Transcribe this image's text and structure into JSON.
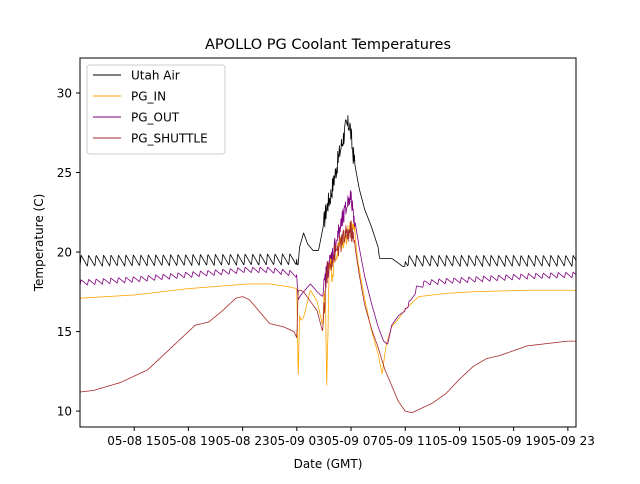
{
  "chart_data": {
    "type": "line",
    "title": "APOLLO PG Coolant Temperatures",
    "xlabel": "Date (GMT)",
    "ylabel": "Temperature (C)",
    "x_unit": "hours since 2023-05-08 00:00 GMT",
    "xlim": [
      11.0,
      47.6
    ],
    "ylim": [
      9.0,
      32.2
    ],
    "grid": false,
    "legend_position": "top-left",
    "x_ticks": [
      {
        "value": 15,
        "label": "05-08 15"
      },
      {
        "value": 19,
        "label": "05-08 19"
      },
      {
        "value": 23,
        "label": "05-08 23"
      },
      {
        "value": 27,
        "label": "05-09 03"
      },
      {
        "value": 31,
        "label": "05-09 07"
      },
      {
        "value": 35,
        "label": "05-09 11"
      },
      {
        "value": 39,
        "label": "05-09 15"
      },
      {
        "value": 43,
        "label": "05-09 19"
      },
      {
        "value": 47,
        "label": "05-09 23"
      }
    ],
    "y_ticks": [
      {
        "value": 10,
        "label": "10"
      },
      {
        "value": 15,
        "label": "15"
      },
      {
        "value": 20,
        "label": "20"
      },
      {
        "value": 25,
        "label": "25"
      },
      {
        "value": 30,
        "label": "30"
      }
    ],
    "series": [
      {
        "name": "Utah Air",
        "color": "#000000",
        "cycle_period_h": 0.55,
        "cycle_amplitude": 0.7,
        "x": [
          11.0,
          27.1,
          27.2,
          27.5,
          27.8,
          28.2,
          28.6,
          28.9,
          29.2,
          29.5,
          29.8,
          30.2,
          30.6,
          30.9,
          31.1,
          31.3,
          31.6,
          32.0,
          32.5,
          33.0,
          33.1,
          33.5,
          34.0,
          34.5,
          34.8,
          35.0,
          47.6
        ],
        "y": [
          19.1,
          19.2,
          20.3,
          21.2,
          20.5,
          20.1,
          20.1,
          21.4,
          22.8,
          23.6,
          24.8,
          26.4,
          27.8,
          28.1,
          26.5,
          25.4,
          24.0,
          22.7,
          21.6,
          20.3,
          19.6,
          19.6,
          19.6,
          19.3,
          19.1,
          19.1,
          19.1
        ]
      },
      {
        "name": "PG_IN",
        "color": "#ffa500",
        "x": [
          11.0,
          15.0,
          19.0,
          22.0,
          23.5,
          25.0,
          26.5,
          27.0,
          27.1,
          27.2,
          27.3,
          27.5,
          28.0,
          28.5,
          28.9,
          29.1,
          29.2,
          29.4,
          29.6,
          29.9,
          30.2,
          30.5,
          30.8,
          31.0,
          31.2,
          31.5,
          32.0,
          32.5,
          33.0,
          33.3,
          33.4,
          33.6,
          34.0,
          34.5,
          35.0,
          36.0,
          38.0,
          40.0,
          44.0,
          47.6
        ],
        "y": [
          17.1,
          17.3,
          17.7,
          17.9,
          18.0,
          18.0,
          17.8,
          17.7,
          11.9,
          16.0,
          15.7,
          15.9,
          17.6,
          16.9,
          15.4,
          18.2,
          11.1,
          19.8,
          18.7,
          19.8,
          20.5,
          20.9,
          21.2,
          21.4,
          21.8,
          19.4,
          17.1,
          15.1,
          13.6,
          12.3,
          13.0,
          14.2,
          15.3,
          15.8,
          16.4,
          17.2,
          17.4,
          17.5,
          17.6,
          17.6
        ]
      },
      {
        "name": "PG_OUT",
        "color": "#800080",
        "cycle_period_h": 0.55,
        "cycle_amplitude": 0.35,
        "x": [
          11.0,
          15.0,
          19.0,
          22.0,
          23.0,
          25.0,
          26.5,
          27.0,
          27.1,
          27.3,
          27.5,
          28.0,
          28.5,
          28.9,
          29.2,
          29.5,
          29.8,
          30.2,
          30.6,
          30.9,
          31.1,
          31.3,
          31.6,
          32.0,
          32.5,
          33.0,
          33.4,
          33.7,
          34.0,
          34.5,
          35.0,
          35.4,
          35.8,
          36.5,
          38.0,
          40.0,
          44.0,
          47.6
        ],
        "y": [
          17.9,
          18.1,
          18.4,
          18.6,
          18.7,
          18.7,
          18.5,
          18.4,
          17.0,
          17.3,
          17.5,
          18.0,
          17.5,
          17.2,
          18.8,
          19.5,
          20.4,
          21.5,
          22.6,
          23.6,
          22.9,
          21.9,
          20.3,
          18.5,
          16.8,
          15.3,
          14.4,
          14.2,
          15.4,
          16.0,
          16.3,
          16.7,
          17.5,
          17.9,
          18.0,
          18.1,
          18.3,
          18.4
        ]
      },
      {
        "name": "PG_SHUTTLE",
        "color": "#a52a2a",
        "x": [
          11.0,
          12.0,
          14.0,
          16.0,
          18.0,
          19.5,
          20.5,
          21.5,
          22.5,
          23.0,
          23.5,
          24.0,
          25.0,
          26.0,
          26.8,
          27.0,
          27.1,
          27.3,
          27.5,
          28.0,
          28.5,
          28.9,
          29.2,
          29.6,
          30.0,
          30.4,
          30.8,
          31.0,
          31.3,
          31.6,
          32.0,
          32.5,
          33.0,
          33.5,
          34.0,
          34.5,
          35.0,
          35.5,
          36.0,
          37.0,
          38.0,
          39.0,
          40.0,
          41.0,
          42.0,
          43.0,
          44.0,
          45.0,
          46.0,
          47.0,
          47.6
        ],
        "y": [
          11.2,
          11.3,
          11.8,
          12.6,
          14.2,
          15.4,
          15.6,
          16.3,
          17.1,
          17.2,
          17.0,
          16.5,
          15.5,
          15.3,
          15.0,
          14.6,
          17.6,
          17.6,
          17.5,
          16.9,
          16.3,
          15.0,
          18.6,
          19.6,
          20.2,
          20.8,
          21.2,
          21.4,
          20.3,
          18.6,
          16.7,
          15.2,
          14.0,
          12.6,
          11.6,
          10.6,
          10.0,
          9.9,
          10.1,
          10.5,
          11.1,
          12.0,
          12.8,
          13.3,
          13.5,
          13.8,
          14.1,
          14.2,
          14.3,
          14.4,
          14.4
        ]
      }
    ]
  }
}
